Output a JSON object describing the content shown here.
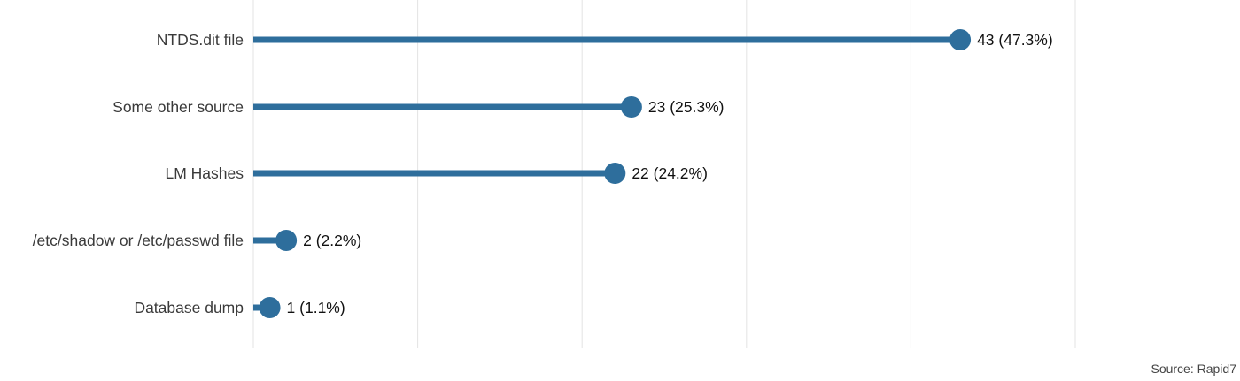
{
  "chart_data": {
    "type": "lollipop",
    "categories": [
      "NTDS.dit file",
      "Some other source",
      "LM Hashes",
      "/etc/shadow or /etc/passwd file",
      "Database dump"
    ],
    "values": [
      43,
      23,
      22,
      2,
      1
    ],
    "value_labels": [
      "43 (47.3%)",
      "23 (25.3%)",
      "22 (24.2%)",
      "2 (2.2%)",
      "1 (1.1%)"
    ],
    "xlim": [
      0,
      50
    ],
    "grid": true,
    "color": "#2e6e9c"
  },
  "source": "Source: Rapid7"
}
